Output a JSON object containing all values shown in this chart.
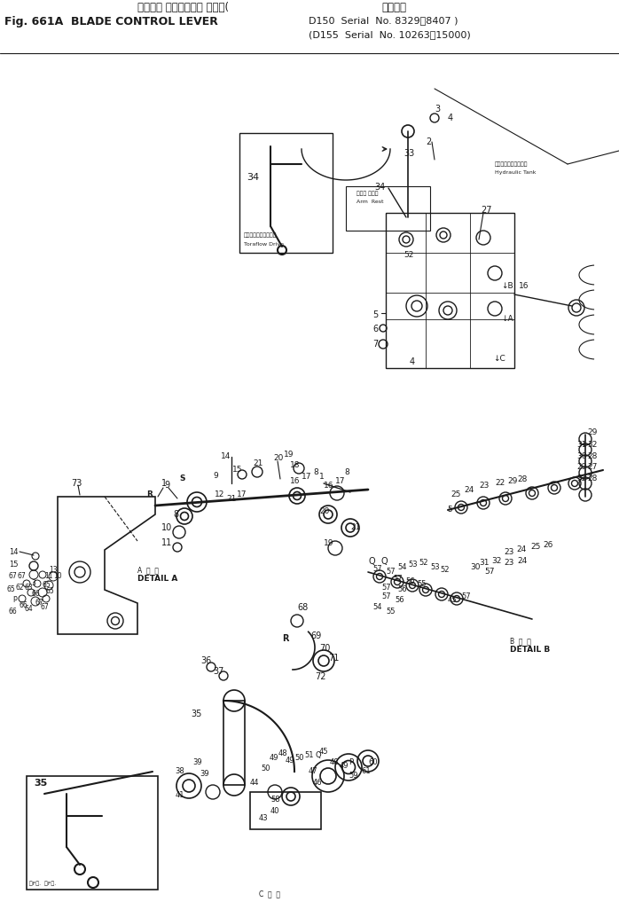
{
  "bg": "#ffffff",
  "lc": "#1a1a1a",
  "fig_width": 6.98,
  "fig_height": 10.17,
  "dpi": 100,
  "header": {
    "jp_title": "ブレード コントロール レバー(",
    "applicable_jp": "適用号機",
    "en_title": "Fig. 661A  BLADE CONTROL LEVER",
    "serial1": "D150  Serial  No. 8329～8407 )",
    "serial2": "(D155  Serial  No. 10263～15000)"
  }
}
